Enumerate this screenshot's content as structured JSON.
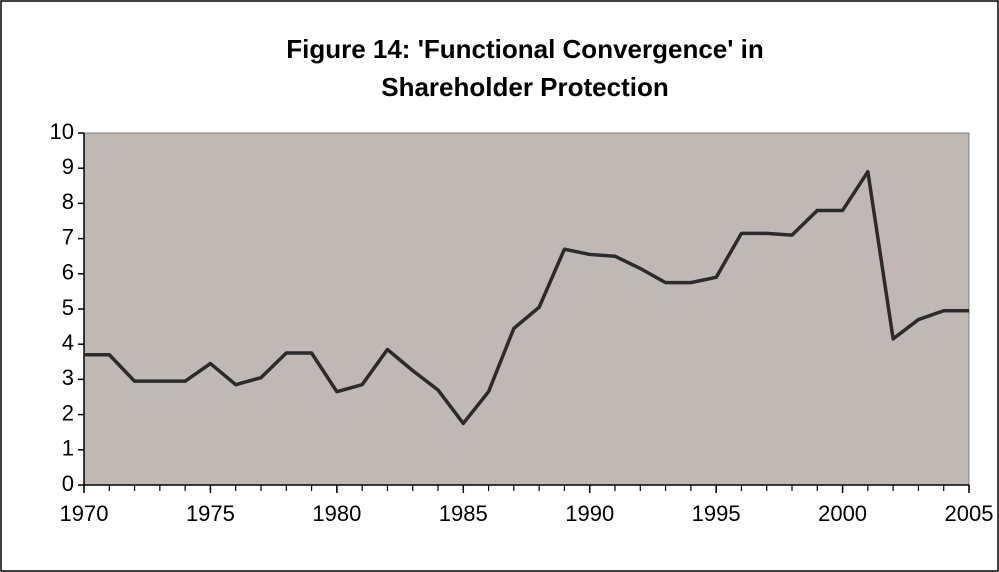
{
  "chart_data": {
    "type": "line",
    "title": [
      "Figure 14: 'Functional Convergence' in",
      "Shareholder Protection"
    ],
    "x": [
      1970,
      1971,
      1972,
      1973,
      1974,
      1975,
      1976,
      1977,
      1978,
      1979,
      1980,
      1981,
      1982,
      1983,
      1984,
      1985,
      1986,
      1987,
      1988,
      1989,
      1990,
      1991,
      1992,
      1993,
      1994,
      1995,
      1996,
      1997,
      1998,
      1999,
      2000,
      2001,
      2002,
      2003,
      2004,
      2005
    ],
    "series": [
      {
        "color": "#2b2b2b",
        "values": [
          3.7,
          3.7,
          2.95,
          2.95,
          2.95,
          3.45,
          2.85,
          3.05,
          3.75,
          3.75,
          2.65,
          2.85,
          3.85,
          3.25,
          2.7,
          1.75,
          2.65,
          4.45,
          5.05,
          6.7,
          6.55,
          6.5,
          6.15,
          5.75,
          5.75,
          5.9,
          7.15,
          7.15,
          7.1,
          7.8,
          7.8,
          8.9,
          4.15,
          4.7,
          4.95,
          4.95
        ]
      }
    ],
    "xlim": [
      1970,
      2005
    ],
    "xticks": [
      1970,
      1975,
      1980,
      1985,
      1990,
      1995,
      2000,
      2005
    ],
    "ylim": [
      0,
      10
    ],
    "yticks": [
      0,
      1,
      2,
      3,
      4,
      5,
      6,
      7,
      8,
      9,
      10
    ],
    "plot_background": "#c0b8b4",
    "grid": false
  }
}
